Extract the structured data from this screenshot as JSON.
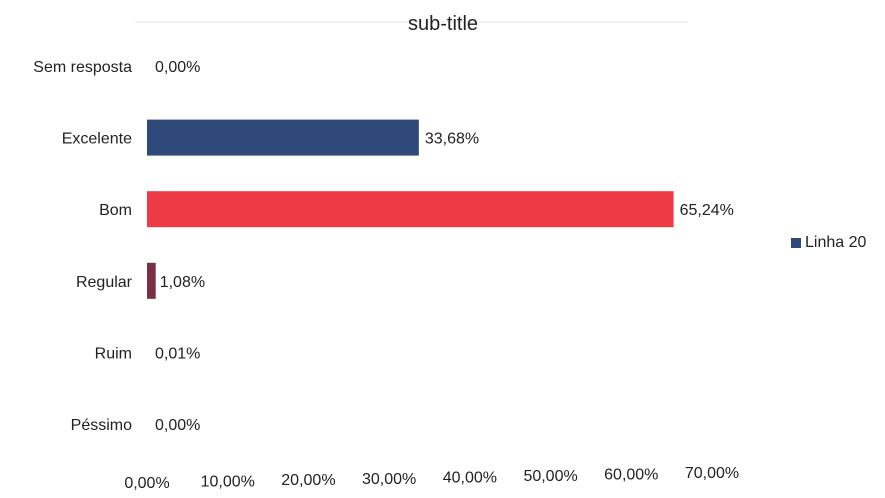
{
  "chart_data": {
    "type": "bar",
    "orientation": "horizontal",
    "title": "sub-title",
    "categories": [
      "Sem resposta",
      "Excelente",
      "Bom",
      "Regular",
      "Ruim",
      "Péssimo"
    ],
    "series": [
      {
        "name": "Linha 20",
        "values": [
          0.0,
          33.68,
          65.24,
          1.08,
          0.01,
          0.0
        ],
        "labels": [
          "0,00%",
          "33,68%",
          "65,24%",
          "1,08%",
          "0,01%",
          "0,00%"
        ],
        "colors": [
          "#2f4a7a",
          "#2f4a7a",
          "#ee3a44",
          "#7a2f45",
          "#2f4a7a",
          "#2f4a7a"
        ]
      }
    ],
    "xlim": [
      0,
      70
    ],
    "x_ticks": [
      "0,00%",
      "10,00%",
      "20,00%",
      "30,00%",
      "40,00%",
      "50,00%",
      "60,00%",
      "70,00%"
    ],
    "grid": false,
    "legend_position": "right",
    "legend_color": "#2f4a7a"
  }
}
